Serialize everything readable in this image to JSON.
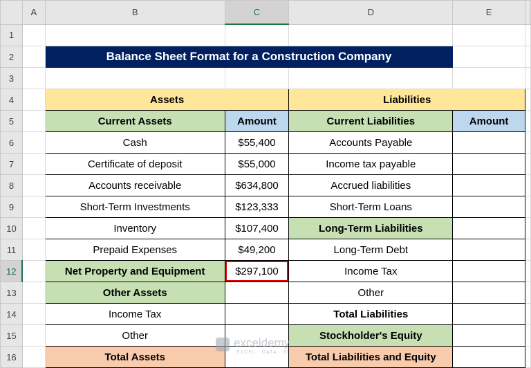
{
  "columns": [
    "A",
    "B",
    "C",
    "D",
    "E"
  ],
  "row_numbers": [
    "1",
    "2",
    "3",
    "4",
    "5",
    "6",
    "7",
    "8",
    "9",
    "10",
    "11",
    "12",
    "13",
    "14",
    "15",
    "16"
  ],
  "title": "Balance Sheet Format for a Construction Company",
  "table": {
    "rows": [
      [
        "Assets",
        "Liabilities"
      ],
      [
        "Current Assets",
        "Amount",
        "Current Liabilities",
        "Amount"
      ],
      [
        "Cash",
        "$55,400",
        "Accounts Payable",
        null
      ],
      [
        "Certificate of deposit",
        "$55,000",
        "Income tax payable",
        null
      ],
      [
        "Accounts receivable",
        "$634,800",
        "Accrued liabilities",
        null
      ],
      [
        "Short-Term Investments",
        "$123,333",
        "Short-Term Loans",
        null
      ],
      [
        "Inventory",
        "$107,400",
        "Long-Term Liabilities",
        null
      ],
      [
        "Prepaid Expenses",
        "$49,200",
        "Long-Term Debt",
        null
      ],
      [
        "Net Property and Equipment",
        "$297,100",
        "Income Tax",
        null
      ],
      [
        "Other Assets",
        null,
        "Other",
        null
      ],
      [
        "Income Tax",
        null,
        "Total Liabilities",
        null
      ],
      [
        "Other",
        null,
        "Stockholder's Equity",
        null
      ],
      [
        "Total Assets",
        null,
        "Total Liabilities and Equity",
        null
      ]
    ]
  },
  "watermark": {
    "brand": "exceldemy",
    "tagline": "EXCEL · DATA · BI"
  }
}
